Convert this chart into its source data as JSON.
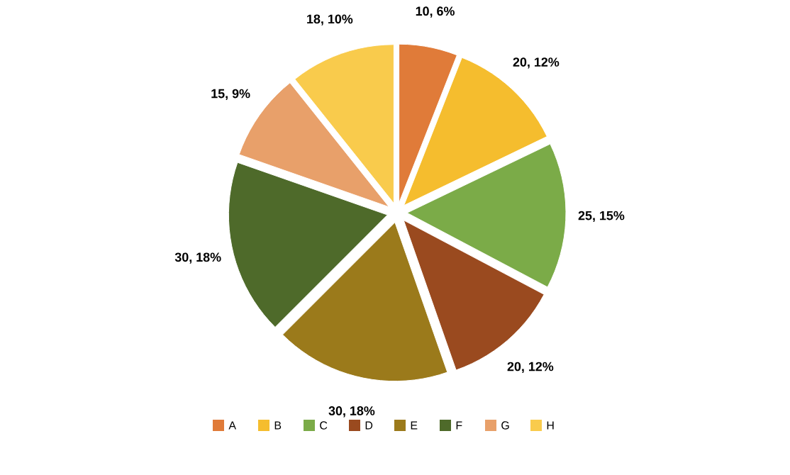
{
  "chart_data": {
    "type": "pie",
    "categories": [
      "A",
      "B",
      "C",
      "D",
      "E",
      "F",
      "G",
      "H"
    ],
    "values": [
      10,
      20,
      25,
      20,
      30,
      30,
      15,
      18
    ],
    "colors": [
      "#e07b39",
      "#f5bd2e",
      "#7bab48",
      "#9a4a1f",
      "#9b7a1b",
      "#4e6a2a",
      "#e8a06a",
      "#f9cb4c"
    ],
    "value_labels": [
      "10, 6%",
      "20, 12%",
      "25, 15%",
      "20, 12%",
      "30, 18%",
      "30, 18%",
      "15, 9%",
      "18, 10%"
    ],
    "legend": "bottom"
  }
}
